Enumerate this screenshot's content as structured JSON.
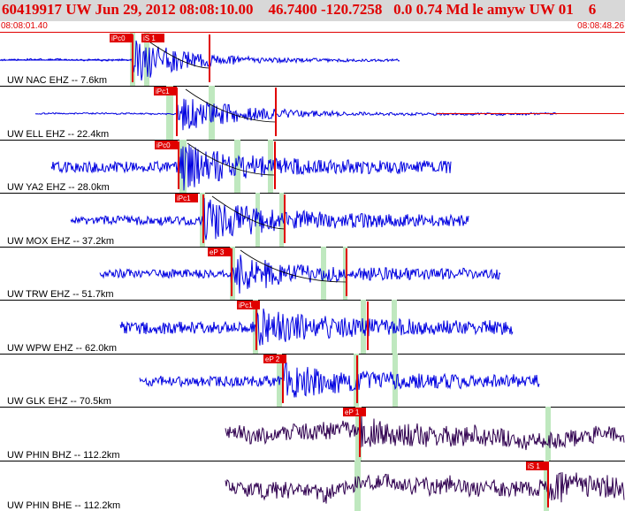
{
  "header": {
    "title": "60419917 UW Jun 29, 2012 08:08:10.00    46.7400 -120.7258   0.0 0.74 Md le amyw UW 01    6",
    "start_time": "08:08:01.40",
    "end_time": "08:08:48.26"
  },
  "colors": {
    "title_text": "#e00000",
    "title_bg": "#d8d8d8",
    "trace_short_period": "#0000e0",
    "trace_broadband": "#300050",
    "pick_box": "#e00000",
    "pick_text": "#ffffff",
    "window_band": "#bfe8bf",
    "separator": "#000000",
    "theoretical_curve": "#000000",
    "noise_tail": "#e00000"
  },
  "traces": [
    {
      "label": "UW NAC EHZ -- 7.6km",
      "kind": "short_period",
      "picks": [
        {
          "text": "iPc0"
        },
        {
          "text": "iS 1"
        }
      ]
    },
    {
      "label": "UW ELL EHZ -- 22.4km",
      "kind": "short_period",
      "picks": [
        {
          "text": "iPc1"
        }
      ]
    },
    {
      "label": "UW YA2 EHZ -- 28.0km",
      "kind": "short_period",
      "picks": [
        {
          "text": "iPc0"
        }
      ]
    },
    {
      "label": "UW MOX EHZ -- 37.2km",
      "kind": "short_period",
      "picks": [
        {
          "text": "iPc1"
        }
      ]
    },
    {
      "label": "UW TRW EHZ -- 51.7km",
      "kind": "short_period",
      "picks": [
        {
          "text": "eP 3"
        }
      ]
    },
    {
      "label": "UW WPW EHZ -- 62.0km",
      "kind": "short_period",
      "picks": [
        {
          "text": "iPc1"
        }
      ]
    },
    {
      "label": "UW GLK EHZ -- 70.5km",
      "kind": "short_period",
      "picks": [
        {
          "text": "eP 2"
        }
      ]
    },
    {
      "label": "UW PHIN BHZ -- 112.2km",
      "kind": "broadband",
      "picks": [
        {
          "text": "eP 1"
        }
      ]
    },
    {
      "label": "UW PHIN BHE -- 112.2km",
      "kind": "broadband",
      "picks": [
        {
          "text": "iS 1"
        }
      ]
    }
  ]
}
